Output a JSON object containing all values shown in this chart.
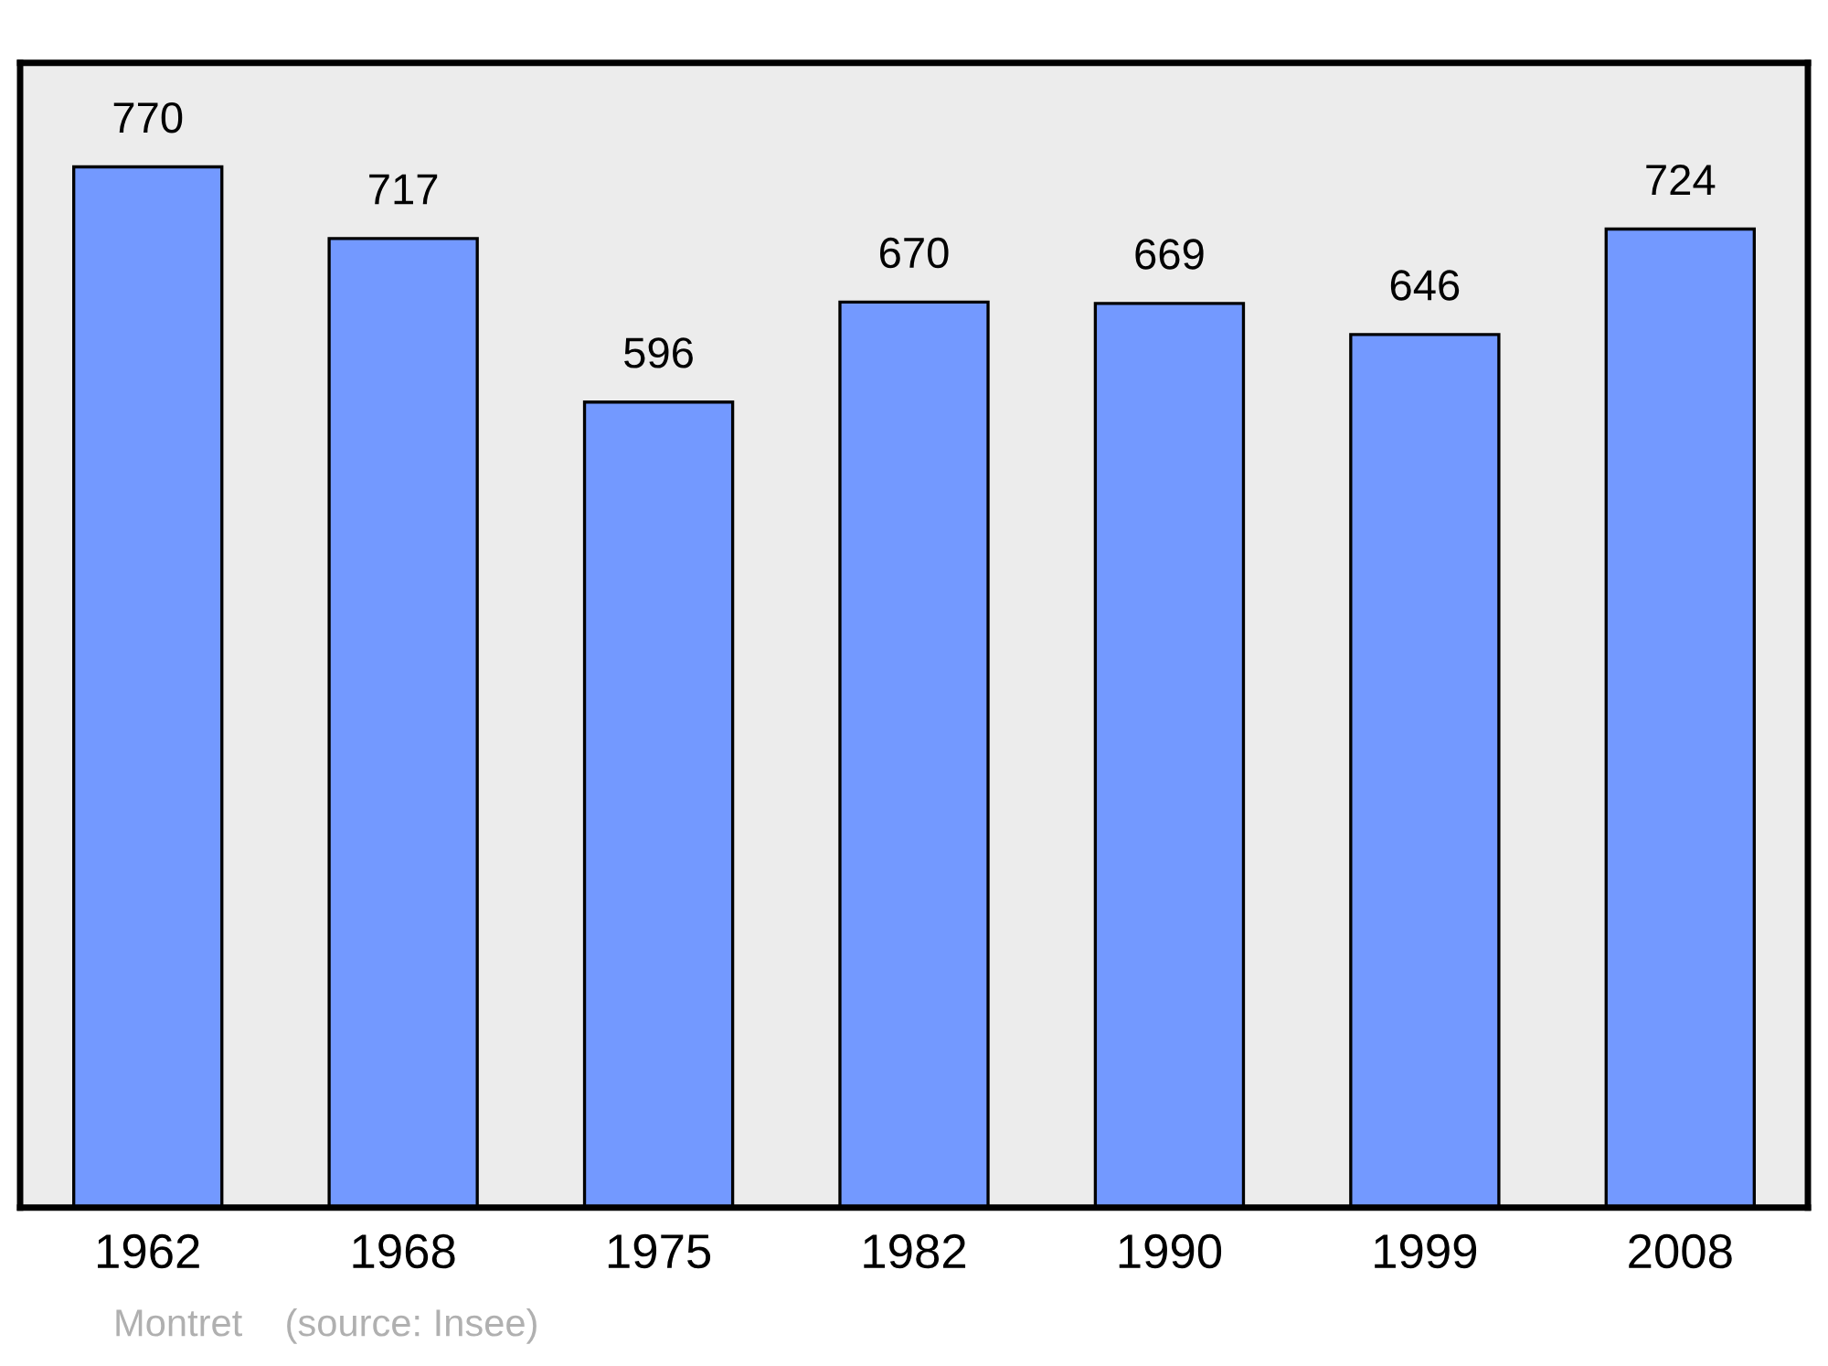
{
  "chart_data": {
    "type": "bar",
    "categories": [
      "1962",
      "1968",
      "1975",
      "1982",
      "1990",
      "1999",
      "2008"
    ],
    "values": [
      770,
      717,
      596,
      670,
      669,
      646,
      724
    ],
    "color": "#7399ff",
    "data_labels": true,
    "ylim": [
      0,
      847
    ],
    "tick_labels": "x",
    "grid": false,
    "legend": false,
    "annotations": [
      "Montret    (source: Insee)"
    ]
  }
}
